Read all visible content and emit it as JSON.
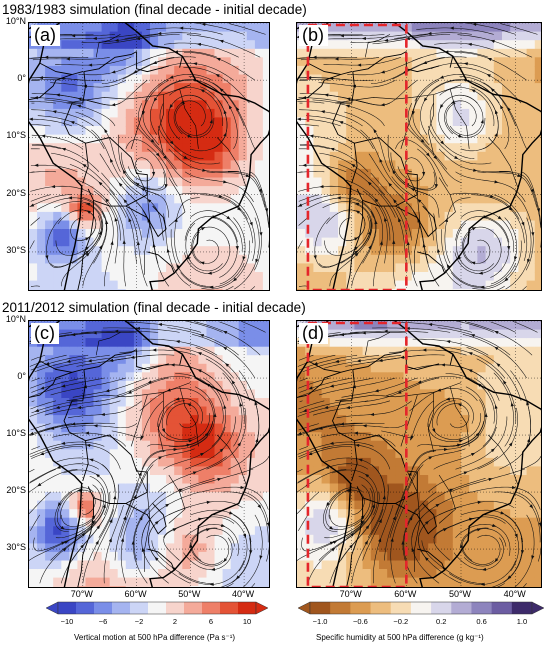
{
  "titles": {
    "top": "1983/1983 simulation (final decade - initial decade)",
    "bottom": "2011/2012 simulation (final decade - initial decade)"
  },
  "panels": [
    {
      "label": "(a)",
      "variable": "vertical_motion"
    },
    {
      "label": "(b)",
      "variable": "specific_humidity"
    },
    {
      "label": "(c)",
      "variable": "vertical_motion"
    },
    {
      "label": "(d)",
      "variable": "specific_humidity"
    }
  ],
  "axes": {
    "lat_labels": [
      "10°N",
      "0°",
      "10°S",
      "20°S",
      "30°S"
    ],
    "lat_values": [
      10,
      0,
      -10,
      -20,
      -30
    ],
    "lon_labels": [
      "70°W",
      "60°W",
      "50°W",
      "40°W"
    ],
    "lon_values": [
      -70,
      -60,
      -50,
      -40
    ],
    "lon_range": [
      -80,
      -35
    ],
    "lat_range": [
      10,
      -37
    ]
  },
  "colorbars": {
    "vertical_motion": {
      "title": "Vertical motion at 500 hPa difference  (Pa s⁻¹)",
      "ticks": [
        "−10",
        "−6",
        "−2",
        "2",
        "6",
        "10"
      ],
      "colors": [
        "#3a46c4",
        "#5566d8",
        "#7a8ee8",
        "#a5b4f0",
        "#ccd5f6",
        "#f5f5f5",
        "#f7d4cc",
        "#f4aa9a",
        "#ee7f68",
        "#e45336",
        "#d52b12"
      ]
    },
    "specific_humidity": {
      "title": "Specific humidity at 500 hPa difference  (g kg⁻¹)",
      "ticks": [
        "−1.0",
        "−0.6",
        "−0.2",
        "0.2",
        "0.6",
        "1.0"
      ],
      "colors": [
        "#a0561e",
        "#c27a35",
        "#dc9c52",
        "#edbd7e",
        "#f7dcb4",
        "#f7f4f0",
        "#d8d6ea",
        "#b3acd4",
        "#8d84bd",
        "#6c5da2",
        "#3d2a6a"
      ]
    }
  },
  "highlight_box": {
    "color": "#e5252b",
    "lon_range": [
      -78,
      -60
    ]
  }
}
